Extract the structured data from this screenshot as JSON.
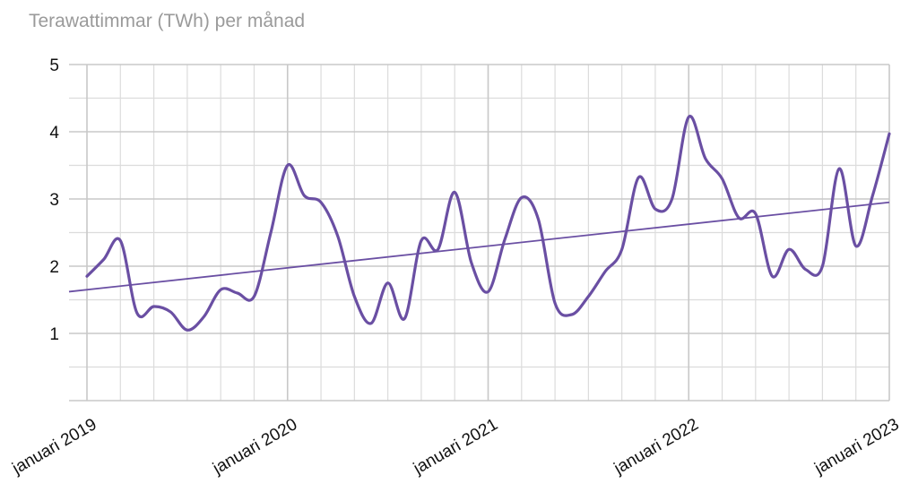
{
  "chart_data": {
    "type": "line",
    "title": "Terawattimmar (TWh) per månad",
    "xlabel": "",
    "ylabel": "",
    "ylim": [
      0,
      5
    ],
    "xlim": [
      "2019-01",
      "2023-01"
    ],
    "y_ticks": [
      "1",
      "2",
      "3",
      "4",
      "5"
    ],
    "x_tick_labels": [
      "januari 2019",
      "januari 2020",
      "januari 2021",
      "januari 2022",
      "januari 2023"
    ],
    "grid": true,
    "colors": {
      "series": "#6a4fa3",
      "trend": "#6a4fa3",
      "grid": "#dcdcdc"
    },
    "series": [
      {
        "x": [
          "2019-01",
          "2019-02",
          "2019-03",
          "2019-04",
          "2019-05",
          "2019-06",
          "2019-07",
          "2019-08",
          "2019-09",
          "2019-10",
          "2019-11",
          "2019-12",
          "2020-01",
          "2020-02",
          "2020-03",
          "2020-04",
          "2020-05",
          "2020-06",
          "2020-07",
          "2020-08",
          "2020-09",
          "2020-10",
          "2020-11",
          "2020-12",
          "2021-01",
          "2021-02",
          "2021-03",
          "2021-04",
          "2021-05",
          "2021-06",
          "2021-07",
          "2021-08",
          "2021-09",
          "2021-10",
          "2021-11",
          "2021-12",
          "2022-01",
          "2022-02",
          "2022-03",
          "2022-04",
          "2022-05",
          "2022-06",
          "2022-07",
          "2022-08",
          "2022-09",
          "2022-10",
          "2022-11",
          "2022-12",
          "2023-01"
        ],
        "values": [
          1.85,
          2.1,
          2.38,
          1.3,
          1.4,
          1.32,
          1.05,
          1.25,
          1.65,
          1.6,
          1.55,
          2.5,
          3.5,
          3.05,
          2.95,
          2.45,
          1.55,
          1.15,
          1.75,
          1.22,
          2.38,
          2.25,
          3.1,
          2.05,
          1.62,
          2.4,
          3.02,
          2.7,
          1.45,
          1.28,
          1.55,
          1.92,
          2.25,
          3.32,
          2.85,
          3.0,
          4.22,
          3.6,
          3.3,
          2.72,
          2.78,
          1.85,
          2.25,
          1.95,
          2.0,
          3.45,
          2.3,
          3.05,
          3.97
        ]
      },
      {
        "type": "trendline",
        "x": [
          "2019-01",
          "2023-01"
        ],
        "values": [
          1.65,
          2.95
        ]
      }
    ]
  }
}
